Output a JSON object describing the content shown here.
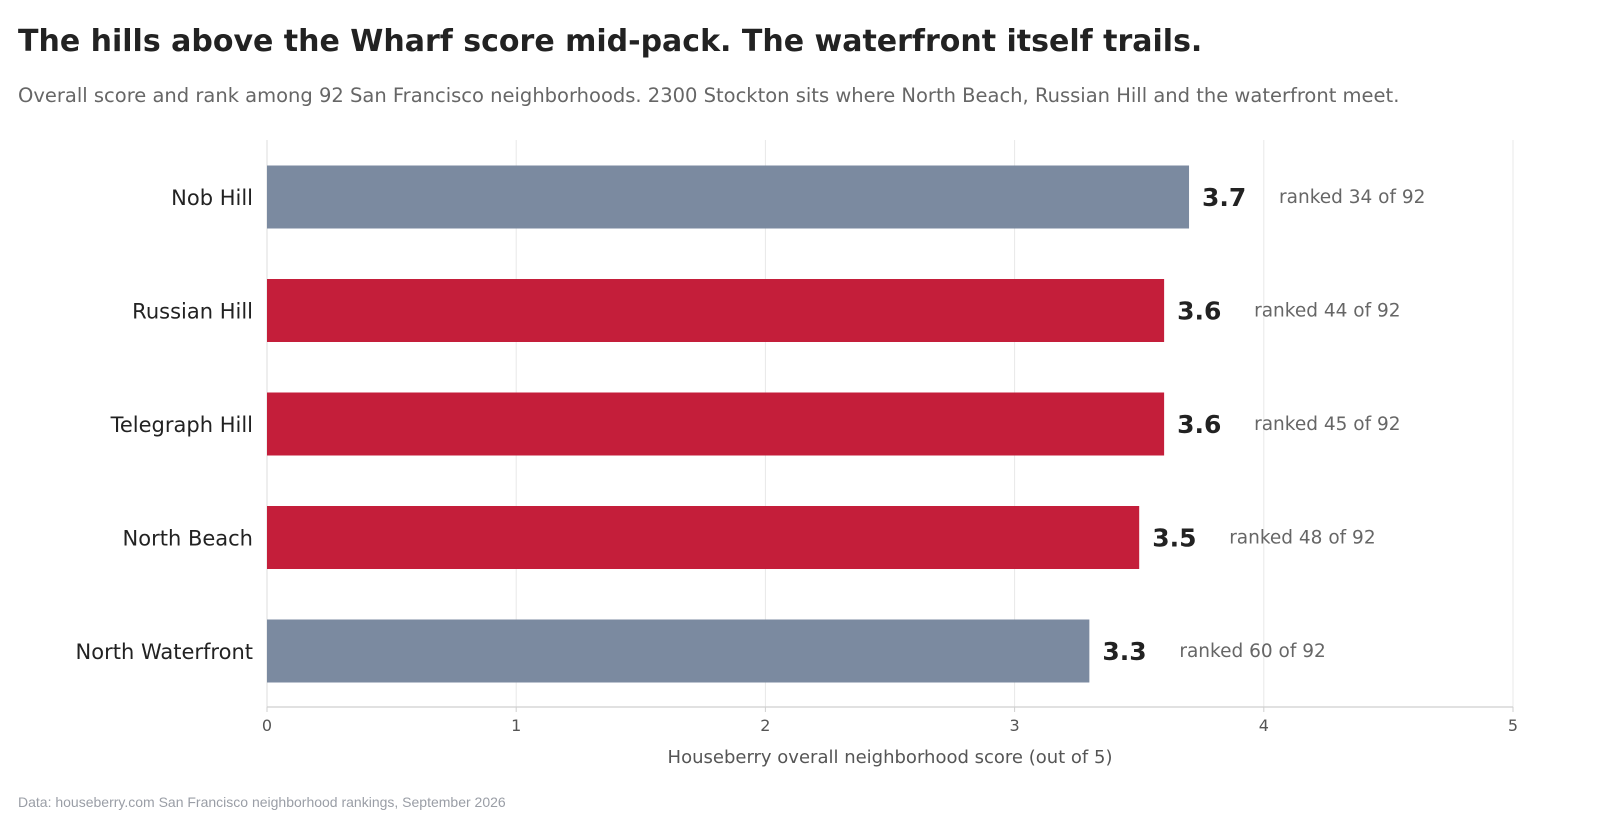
{
  "title": "The hills above the Wharf score mid-pack. The waterfront itself trails.",
  "subtitle": "Overall score and rank among 92 San Francisco neighborhoods. 2300 Stockton sits where North Beach, Russian Hill and the waterfront meet.",
  "source": "Data: houseberry.com San Francisco neighborhood rankings, September 2026",
  "colors": {
    "highlight": "#c41e3a",
    "neutral": "#7b8aa0"
  },
  "chart_data": {
    "type": "bar",
    "orientation": "horizontal",
    "categories": [
      "Nob Hill",
      "Russian Hill",
      "Telegraph Hill",
      "North Beach",
      "North Waterfront"
    ],
    "values": [
      3.7,
      3.6,
      3.6,
      3.5,
      3.3
    ],
    "value_labels": [
      "3.7",
      "3.6",
      "3.6",
      "3.5",
      "3.3"
    ],
    "rank_labels": [
      "ranked 34 of 92",
      "ranked 44 of 92",
      "ranked 45 of 92",
      "ranked 48 of 92",
      "ranked 60 of 92"
    ],
    "highlighted": [
      false,
      true,
      true,
      true,
      false
    ],
    "xlabel": "Houseberry overall neighborhood score (out of 5)",
    "xlim": [
      0,
      5
    ],
    "xticks": [
      0,
      1,
      2,
      3,
      4,
      5
    ],
    "grid": true
  }
}
